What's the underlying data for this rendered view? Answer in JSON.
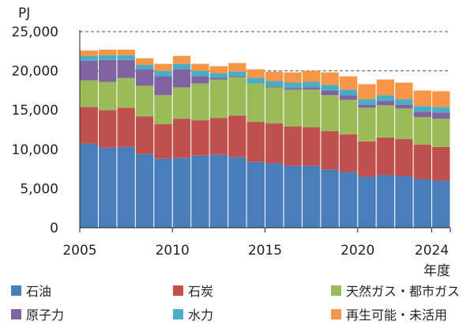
{
  "chart_data": {
    "type": "bar",
    "stacked": true,
    "unit_label": "PJ",
    "xlabel": "年度",
    "ylim": [
      0,
      25000
    ],
    "yticks": [
      0,
      5000,
      10000,
      15000,
      20000,
      25000
    ],
    "ytick_labels": [
      "0",
      "5,000",
      "10,000",
      "15,000",
      "20,000",
      "25,000"
    ],
    "dashed_gridlines": [
      20000,
      25000
    ],
    "categories": [
      2005,
      2006,
      2007,
      2008,
      2009,
      2010,
      2011,
      2012,
      2013,
      2014,
      2015,
      2016,
      2017,
      2018,
      2019,
      2020,
      2021,
      2022,
      2023,
      2024
    ],
    "xtick_labels": [
      "2005",
      "2010",
      "2015",
      "2020",
      "2024"
    ],
    "xtick_years": [
      2005,
      2010,
      2015,
      2020,
      2024
    ],
    "series": [
      {
        "name": "石油",
        "color": "#4a7ebb",
        "values": [
          10700,
          10200,
          10300,
          9400,
          8800,
          8900,
          9200,
          9300,
          9000,
          8400,
          8200,
          7900,
          7900,
          7400,
          7100,
          6500,
          6700,
          6600,
          6200,
          6000
        ]
      },
      {
        "name": "石炭",
        "color": "#c0504d",
        "values": [
          4700,
          4800,
          5000,
          4800,
          4400,
          5000,
          4500,
          4700,
          5300,
          5100,
          5100,
          5000,
          4900,
          4900,
          4800,
          4500,
          4800,
          4700,
          4400,
          4300
        ]
      },
      {
        "name": "天然ガス・都市ガス",
        "color": "#9bbb59",
        "values": [
          3400,
          3600,
          3800,
          3900,
          3700,
          4000,
          4700,
          4900,
          4900,
          4900,
          4600,
          4700,
          4800,
          4600,
          4400,
          4300,
          4100,
          3900,
          3500,
          3600
        ]
      },
      {
        "name": "原子力",
        "color": "#8064a2",
        "values": [
          2500,
          2800,
          2300,
          2100,
          2400,
          2300,
          900,
          200,
          100,
          0,
          100,
          200,
          300,
          600,
          600,
          400,
          600,
          500,
          700,
          800
        ]
      },
      {
        "name": "水力",
        "color": "#4bacc6",
        "values": [
          600,
          600,
          600,
          600,
          700,
          700,
          700,
          600,
          600,
          700,
          700,
          700,
          700,
          700,
          700,
          700,
          700,
          700,
          700,
          700
        ]
      },
      {
        "name": "再生可能・未活用",
        "color": "#f79646",
        "values": [
          700,
          700,
          700,
          800,
          900,
          1000,
          900,
          900,
          1100,
          1100,
          1200,
          1300,
          1400,
          1600,
          1700,
          1900,
          2000,
          2100,
          2000,
          2000
        ]
      }
    ]
  }
}
